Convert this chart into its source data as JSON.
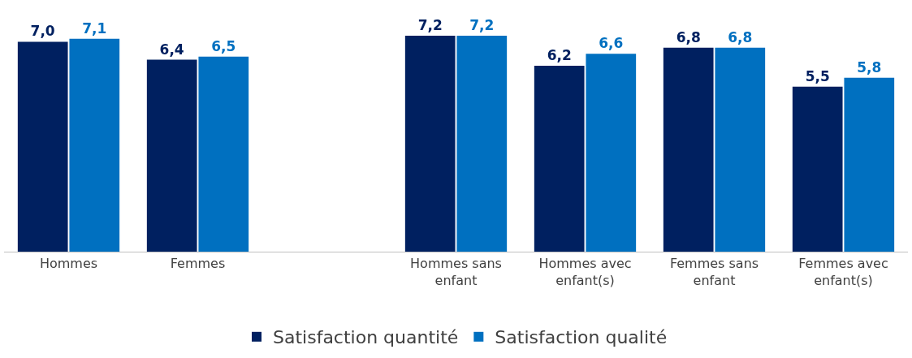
{
  "chart_data": {
    "type": "bar",
    "categories": [
      "Hommes",
      "Femmes",
      null,
      "Hommes sans enfant",
      "Hommes avec enfant(s)",
      "Femmes sans enfant",
      "Femmes avec enfant(s)"
    ],
    "series": [
      {
        "name": "Satisfaction quantité",
        "color": "#002060",
        "values": [
          7.0,
          6.4,
          null,
          7.2,
          6.2,
          6.8,
          5.5
        ],
        "value_labels": [
          "7,0",
          "6,4",
          null,
          "7,2",
          "6,2",
          "6,8",
          "5,5"
        ]
      },
      {
        "name": "Satisfaction qualité",
        "color": "#0070c0",
        "values": [
          7.1,
          6.5,
          null,
          7.2,
          6.6,
          6.8,
          5.8
        ],
        "value_labels": [
          "7,1",
          "6,5",
          null,
          "7,2",
          "6,6",
          "6,8",
          "5,8"
        ]
      }
    ],
    "tick_labels": "x",
    "legend": "bottom"
  }
}
